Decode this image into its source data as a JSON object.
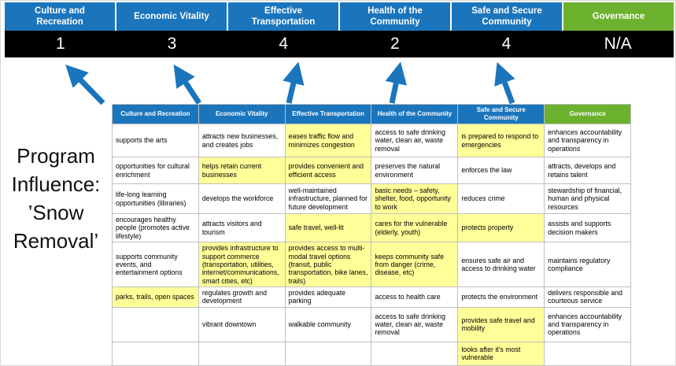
{
  "title": "Program Influence: ’Snow Removal’",
  "colors": {
    "blue": "#1b75bc",
    "green": "#6cb22e",
    "score_bg": "#000000",
    "score_text": "#ffffff",
    "highlight": "#ffff99",
    "border": "#bfbfbf",
    "arrow": "#1b75bc"
  },
  "scoreboard": {
    "columns": [
      {
        "label": "Culture and Recreation",
        "score": "1",
        "theme": "blue"
      },
      {
        "label": "Economic Vitality",
        "score": "3",
        "theme": "blue"
      },
      {
        "label": "Effective Transportation",
        "score": "4",
        "theme": "blue"
      },
      {
        "label": "Health of the Community",
        "score": "2",
        "theme": "blue"
      },
      {
        "label": "Safe and Secure Community",
        "score": "4",
        "theme": "blue"
      },
      {
        "label": "Governance",
        "score": "N/A",
        "theme": "green"
      }
    ]
  },
  "matrix": {
    "headers": [
      {
        "label": "Culture and Recreation",
        "theme": "blue"
      },
      {
        "label": "Economic Vitality",
        "theme": "blue"
      },
      {
        "label": "Effective Transportation",
        "theme": "blue"
      },
      {
        "label": "Health of the Community",
        "theme": "blue"
      },
      {
        "label": "Safe and Secure Community",
        "theme": "blue"
      },
      {
        "label": "Governance",
        "theme": "green"
      }
    ],
    "rows": [
      [
        {
          "text": "supports the arts",
          "highlight": false
        },
        {
          "text": "attracts new businesses, and creates jobs",
          "highlight": false
        },
        {
          "text": "eases traffic flow and minimizes congestion",
          "highlight": true
        },
        {
          "text": "access to safe drinking water, clean air, waste removal",
          "highlight": false
        },
        {
          "text": "is prepared to respond to emergencies",
          "highlight": true
        },
        {
          "text": "enhances accountability and transparency in operations",
          "highlight": false
        }
      ],
      [
        {
          "text": "opportunities for cultural enrichment",
          "highlight": false
        },
        {
          "text": "helps retain current businesses",
          "highlight": true
        },
        {
          "text": "provides convenient and efficient access",
          "highlight": true
        },
        {
          "text": "preserves the natural environment",
          "highlight": false
        },
        {
          "text": "enforces the law",
          "highlight": false
        },
        {
          "text": "attracts, develops and retains talent",
          "highlight": false
        }
      ],
      [
        {
          "text": "life-long learning opportunities (libraries)",
          "highlight": false
        },
        {
          "text": "develops the workforce",
          "highlight": false
        },
        {
          "text": "well-maintained infrastructure, planned for future development",
          "highlight": false
        },
        {
          "text": "basic needs – safety, shelter, food, opportunity to work",
          "highlight": true
        },
        {
          "text": "reduces crime",
          "highlight": false
        },
        {
          "text": "stewardship of financial, human and physical resources",
          "highlight": false
        }
      ],
      [
        {
          "text": "encourages healthy people (promotes active lifestyle)",
          "highlight": false
        },
        {
          "text": "attracts visitors and tourism",
          "highlight": false
        },
        {
          "text": "safe travel, well-lit",
          "highlight": true
        },
        {
          "text": "cares for the vulnerable (elderly, youth)",
          "highlight": true
        },
        {
          "text": "protects property",
          "highlight": true
        },
        {
          "text": "assists and supports decision makers",
          "highlight": false
        }
      ],
      [
        {
          "text": "supports community events, and entertainment options",
          "highlight": false
        },
        {
          "text": "provides infrastructure to support commerce (transportation, utilities, internet/communications, smart cities, etc)",
          "highlight": true
        },
        {
          "text": "provides access to multi-modal travel options (transit, public transportation, bike lanes, trails)",
          "highlight": true
        },
        {
          "text": "keeps community safe from danger (crime, disease, etc)",
          "highlight": true
        },
        {
          "text": "ensures safe air and access to drinking water",
          "highlight": false
        },
        {
          "text": "maintains regulatory compliance",
          "highlight": false
        }
      ],
      [
        {
          "text": "parks, trails, open spaces",
          "highlight": true
        },
        {
          "text": "regulates growth and development",
          "highlight": false
        },
        {
          "text": "provides adequate parking",
          "highlight": false
        },
        {
          "text": "access to health care",
          "highlight": false
        },
        {
          "text": "protects the environment",
          "highlight": false
        },
        {
          "text": "delivers responsible and courteous service",
          "highlight": false
        }
      ],
      [
        {
          "text": "",
          "highlight": false
        },
        {
          "text": "vibrant downtown",
          "highlight": false
        },
        {
          "text": "walkable community",
          "highlight": false
        },
        {
          "text": "access to safe drinking water, clean air, waste removal",
          "highlight": false
        },
        {
          "text": "provides safe travel and mobility",
          "highlight": true
        },
        {
          "text": "enhances accountability and transparency in operations",
          "highlight": false
        }
      ],
      [
        {
          "text": "",
          "highlight": false
        },
        {
          "text": "",
          "highlight": false
        },
        {
          "text": "",
          "highlight": false
        },
        {
          "text": "",
          "highlight": false
        },
        {
          "text": "looks after it's most vulnerable",
          "highlight": true
        },
        {
          "text": "",
          "highlight": false
        }
      ]
    ]
  }
}
